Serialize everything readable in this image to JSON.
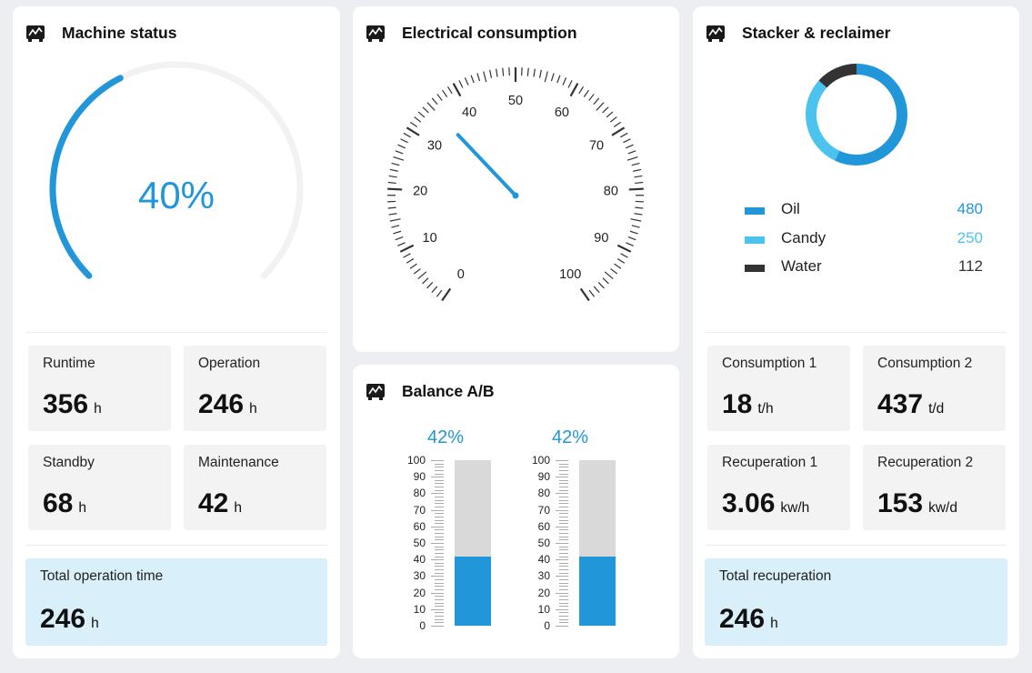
{
  "machine_status": {
    "title": "Machine status",
    "icon": "machine-icon",
    "gauge": {
      "value_label": "40%",
      "value": 0.4
    },
    "stats": [
      {
        "label": "Runtime",
        "value": "356",
        "unit": "h"
      },
      {
        "label": "Operation",
        "value": "246",
        "unit": "h"
      },
      {
        "label": "Standby",
        "value": "68",
        "unit": "h"
      },
      {
        "label": "Maintenance",
        "value": "42",
        "unit": "h"
      }
    ],
    "total": {
      "label": "Total operation time",
      "value": "246",
      "unit": "h"
    }
  },
  "electrical": {
    "title": "Electrical consumption",
    "icon": "machine-icon",
    "gauge": {
      "min": 0,
      "max": 100,
      "value": 35,
      "labels": [
        "0",
        "10",
        "20",
        "30",
        "40",
        "50",
        "60",
        "70",
        "80",
        "90",
        "100"
      ]
    }
  },
  "balance": {
    "title": "Balance A/B",
    "icon": "machine-icon",
    "scale_labels": [
      "100",
      "90",
      "80",
      "70",
      "60",
      "50",
      "40",
      "30",
      "20",
      "10",
      "0"
    ],
    "bars": [
      {
        "pct_label": "42%",
        "value": 42
      },
      {
        "pct_label": "42%",
        "value": 42
      }
    ]
  },
  "stacker": {
    "title": "Stacker & reclaimer",
    "icon": "machine-icon",
    "donut": [
      {
        "name": "Oil",
        "value": 480,
        "value_label": "480",
        "color": "#2196d9"
      },
      {
        "name": "Candy",
        "value": 250,
        "value_label": "250",
        "color": "#4cc3ee"
      },
      {
        "name": "Water",
        "value": 112,
        "value_label": "112",
        "color": "#333333"
      }
    ],
    "stats": [
      {
        "label": "Consumption 1",
        "value": "18",
        "unit": "t/h"
      },
      {
        "label": "Consumption 2",
        "value": "437",
        "unit": "t/d"
      },
      {
        "label": "Recuperation 1",
        "value": "3.06",
        "unit": "kw/h"
      },
      {
        "label": "Recuperation 2",
        "value": "153",
        "unit": "kw/d"
      }
    ],
    "total": {
      "label": "Total recuperation",
      "value": "246",
      "unit": "h"
    }
  },
  "colors": {
    "accent": "#2196d9",
    "accent_light": "#4cc3ee",
    "dark": "#333333",
    "track": "#f2f2f2",
    "total_bg": "#d9f0fa"
  }
}
